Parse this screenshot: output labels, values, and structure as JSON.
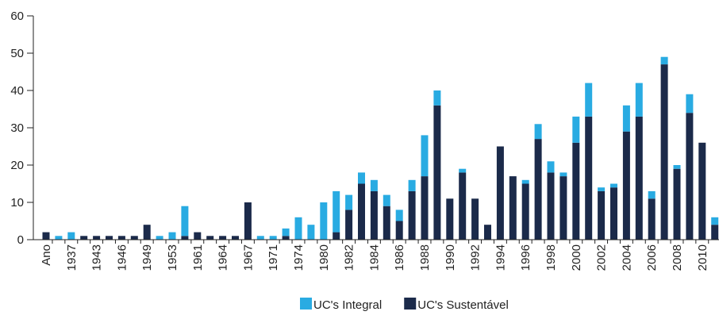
{
  "chart_data": {
    "type": "stacked_bar",
    "categories": [
      "Ano",
      null,
      "1937",
      null,
      "1943",
      null,
      "1946",
      null,
      "1949",
      null,
      "1953",
      null,
      "1961",
      null,
      "1964",
      null,
      "1967",
      null,
      "1971",
      null,
      "1974",
      null,
      "1980",
      null,
      "1982",
      null,
      "1984",
      null,
      "1986",
      null,
      "1988",
      null,
      "1990",
      null,
      "1992",
      null,
      "1994",
      null,
      "1996",
      null,
      "1998",
      null,
      "2000",
      null,
      "2002",
      null,
      "2004",
      null,
      "2006",
      null,
      "2008",
      null,
      "2010",
      null
    ],
    "series": [
      {
        "name": "UC's Integral",
        "color": "#29abe2",
        "values": [
          0,
          1,
          2,
          0,
          0,
          0,
          0,
          0,
          0,
          1,
          2,
          8,
          0,
          0,
          0,
          0,
          0,
          1,
          1,
          2,
          6,
          4,
          10,
          11,
          4,
          3,
          3,
          3,
          3,
          3,
          11,
          4,
          0,
          1,
          0,
          0,
          0,
          0,
          1,
          4,
          3,
          1,
          7,
          9,
          1,
          1,
          7,
          9,
          2,
          2,
          1,
          5,
          0,
          2
        ]
      },
      {
        "name": "UC's Sustentável",
        "color": "#1b2a4a",
        "values": [
          2,
          0,
          0,
          1,
          1,
          1,
          1,
          1,
          4,
          0,
          0,
          1,
          2,
          1,
          1,
          1,
          10,
          0,
          0,
          1,
          0,
          0,
          0,
          2,
          8,
          15,
          13,
          9,
          5,
          13,
          17,
          36,
          11,
          18,
          11,
          4,
          25,
          17,
          15,
          27,
          18,
          17,
          26,
          33,
          13,
          14,
          29,
          33,
          11,
          47,
          19,
          34,
          26,
          4
        ]
      }
    ],
    "ylim": [
      0,
      60
    ],
    "yticks": [
      0,
      10,
      20,
      30,
      40,
      50,
      60
    ],
    "grid": false,
    "legend": "bottom"
  }
}
